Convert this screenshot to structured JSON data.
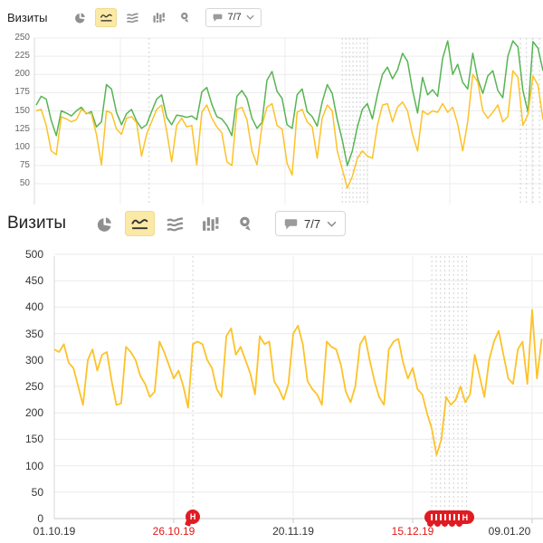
{
  "palette": {
    "series_green": "#58b453",
    "series_yellow": "#fdc228",
    "selected_icon_bg": "#fbe9a6",
    "icon_gray": "#8f8f8f",
    "grid": "#ebebeb",
    "grid_vertical": "#ededed",
    "axis_line": "#d9d9d9",
    "zero_line": "#c8c8c8",
    "dashed_note_line": "#d2d2d2",
    "tick_red": "#e01717",
    "note_red": "#e01b22"
  },
  "widgets": [
    {
      "title": "Визиты",
      "counter": "7/7",
      "toolbar_icons": [
        "pie-chart",
        "line-chart",
        "stacked-area",
        "bar-chart",
        "geo-pin"
      ],
      "selected_icon": "line-chart"
    },
    {
      "title": "Визиты",
      "counter": "7/7",
      "toolbar_icons": [
        "pie-chart",
        "line-chart",
        "stacked-area",
        "bar-chart",
        "geo-pin"
      ],
      "selected_icon": "line-chart"
    }
  ],
  "chart_data": [
    {
      "type": "line",
      "title": "Визиты (верхний виджет, обрезан)",
      "grid": true,
      "legend_position": "none",
      "yticks": [
        250,
        225,
        200,
        175,
        150,
        125,
        100,
        75,
        50
      ],
      "ylim_visible": [
        25,
        250
      ],
      "series": [
        {
          "name": "visits-green",
          "color": "#58b453",
          "values": [
            158,
            170,
            166,
            137,
            116,
            150,
            147,
            143,
            150,
            155,
            146,
            149,
            128,
            135,
            186,
            180,
            148,
            131,
            146,
            152,
            136,
            126,
            131,
            149,
            166,
            172,
            141,
            131,
            144,
            143,
            141,
            143,
            138,
            176,
            182,
            159,
            142,
            139,
            130,
            116,
            170,
            178,
            167,
            140,
            126,
            134,
            192,
            204,
            177,
            167,
            131,
            126,
            172,
            180,
            149,
            142,
            129,
            162,
            186,
            174,
            138,
            110,
            75,
            95,
            128,
            152,
            160,
            139,
            172,
            200,
            210,
            194,
            206,
            229,
            218,
            179,
            147,
            196,
            172,
            179,
            170,
            222,
            246,
            200,
            214,
            189,
            180,
            229,
            194,
            174,
            198,
            205,
            178,
            168,
            225,
            246,
            238,
            178,
            148,
            245,
            236,
            205
          ]
        },
        {
          "name": "visits-yellow",
          "color": "#fdc228",
          "values": [
            150,
            152,
            130,
            95,
            90,
            142,
            139,
            135,
            138,
            152,
            147,
            146,
            118,
            76,
            150,
            147,
            125,
            118,
            140,
            142,
            134,
            88,
            118,
            135,
            152,
            158,
            122,
            80,
            130,
            140,
            128,
            130,
            76,
            148,
            158,
            140,
            128,
            120,
            80,
            75,
            152,
            155,
            138,
            95,
            76,
            130,
            155,
            160,
            130,
            125,
            78,
            62,
            148,
            152,
            135,
            128,
            85,
            140,
            158,
            150,
            95,
            70,
            44,
            60,
            85,
            95,
            88,
            85,
            130,
            158,
            160,
            135,
            155,
            162,
            150,
            118,
            95,
            150,
            145,
            150,
            148,
            160,
            148,
            155,
            132,
            95,
            135,
            200,
            190,
            150,
            140,
            148,
            158,
            135,
            142,
            205,
            196,
            130,
            145,
            198,
            185,
            138
          ]
        }
      ],
      "annotations": {
        "single_day": 22.5,
        "cluster": {
          "from_day": 61,
          "to_day": 66,
          "count": 8
        },
        "edge_group_days": [
          96.5,
          97.7,
          99,
          100.3
        ]
      }
    },
    {
      "type": "line",
      "title": "Визиты",
      "grid": true,
      "legend_position": "none",
      "yticks": [
        500,
        450,
        400,
        350,
        300,
        250,
        200,
        150,
        100,
        50,
        0
      ],
      "ylim": [
        0,
        500
      ],
      "xticks": [
        {
          "label": "01.10.19",
          "day": 0,
          "red": false
        },
        {
          "label": "26.10.19",
          "day": 25,
          "red": true
        },
        {
          "label": "20.11.19",
          "day": 50,
          "red": false
        },
        {
          "label": "15.12.19",
          "day": 75,
          "red": true
        },
        {
          "label": "09.01.20",
          "day": 100,
          "red": false
        }
      ],
      "series": [
        {
          "name": "visits",
          "color": "#fdc228",
          "values": [
            320,
            315,
            330,
            295,
            285,
            250,
            215,
            300,
            320,
            280,
            310,
            315,
            260,
            215,
            218,
            325,
            315,
            300,
            270,
            255,
            230,
            240,
            335,
            315,
            290,
            265,
            280,
            250,
            210,
            330,
            335,
            330,
            300,
            285,
            245,
            230,
            345,
            360,
            310,
            325,
            300,
            275,
            235,
            345,
            330,
            335,
            260,
            245,
            225,
            255,
            350,
            365,
            330,
            260,
            245,
            235,
            215,
            335,
            325,
            320,
            290,
            240,
            220,
            250,
            330,
            345,
            300,
            260,
            230,
            215,
            320,
            335,
            340,
            295,
            265,
            285,
            245,
            235,
            200,
            170,
            120,
            150,
            230,
            215,
            225,
            250,
            220,
            235,
            310,
            270,
            230,
            300,
            335,
            355,
            310,
            265,
            255,
            320,
            335,
            255,
            395,
            265,
            340
          ]
        }
      ],
      "annotations": {
        "marker_label": "Н",
        "single_day": 29,
        "cluster": {
          "from_day": 79,
          "to_day": 86.3,
          "count": 9
        }
      }
    }
  ]
}
